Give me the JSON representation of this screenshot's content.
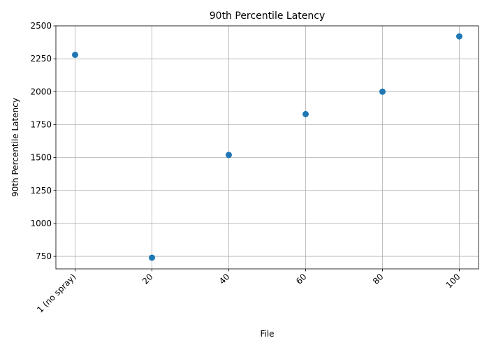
{
  "chart_data": {
    "type": "scatter",
    "title": "90th Percentile Latency",
    "xlabel": "File",
    "ylabel": "90th Percentile Latency",
    "categories": [
      "1 (no spray)",
      "20",
      "40",
      "60",
      "80",
      "100"
    ],
    "values": [
      2280,
      740,
      1520,
      1830,
      2000,
      2420
    ],
    "ylim": [
      655,
      2500
    ],
    "yticks": [
      750,
      1000,
      1250,
      1500,
      1750,
      2000,
      2250,
      2500
    ],
    "grid": true,
    "marker_color": "#1f77b4"
  }
}
